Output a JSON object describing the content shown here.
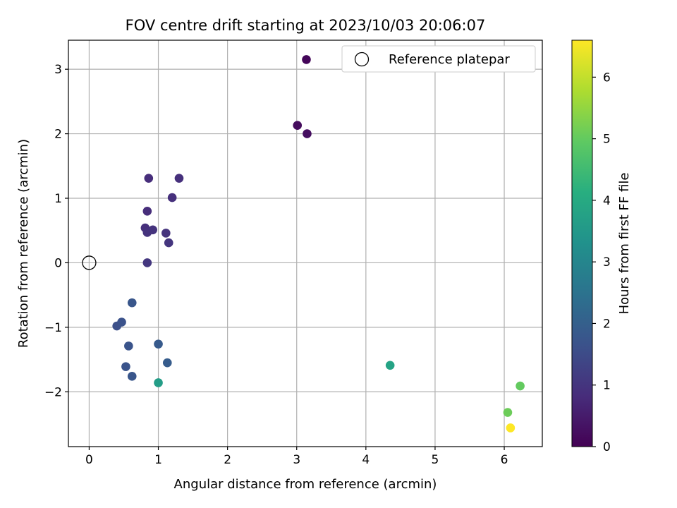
{
  "chart_data": {
    "type": "scatter",
    "title": "FOV centre drift starting at 2023/10/03 20:06:07",
    "xlabel": "Angular distance from reference (arcmin)",
    "ylabel": "Rotation from reference (arcmin)",
    "xlim": [
      -0.3,
      6.55
    ],
    "ylim": [
      -2.85,
      3.45
    ],
    "x_ticks": [
      0,
      1,
      2,
      3,
      4,
      5,
      6
    ],
    "x_tick_labels": [
      "0",
      "1",
      "2",
      "3",
      "4",
      "5",
      "6"
    ],
    "y_ticks": [
      -2,
      -1,
      0,
      1,
      2,
      3
    ],
    "y_tick_labels": [
      "−2",
      "−1",
      "0",
      "1",
      "2",
      "3"
    ],
    "grid": true,
    "legend": {
      "placement": "top-right",
      "entries": [
        "Reference platepar"
      ]
    },
    "reference_point": {
      "x": 0,
      "y": 0
    },
    "colorbar": {
      "label": "Hours from first FF file",
      "range": [
        0,
        6.6
      ],
      "ticks": [
        0,
        1,
        2,
        3,
        4,
        5,
        6
      ],
      "tick_labels": [
        "0",
        "1",
        "2",
        "3",
        "4",
        "5",
        "6"
      ],
      "colormap": "viridis"
    },
    "points": [
      {
        "x": 3.14,
        "y": 3.15,
        "hours": 0.1
      },
      {
        "x": 3.01,
        "y": 2.13,
        "hours": 0.2
      },
      {
        "x": 3.15,
        "y": 2.0,
        "hours": 0.25
      },
      {
        "x": 0.86,
        "y": 1.31,
        "hours": 0.85
      },
      {
        "x": 1.3,
        "y": 1.31,
        "hours": 0.9
      },
      {
        "x": 1.2,
        "y": 1.01,
        "hours": 0.9
      },
      {
        "x": 0.84,
        "y": 0.8,
        "hours": 0.85
      },
      {
        "x": 0.81,
        "y": 0.54,
        "hours": 0.9
      },
      {
        "x": 0.84,
        "y": 0.47,
        "hours": 0.95
      },
      {
        "x": 0.92,
        "y": 0.51,
        "hours": 0.95
      },
      {
        "x": 1.11,
        "y": 0.46,
        "hours": 0.95
      },
      {
        "x": 1.15,
        "y": 0.31,
        "hours": 1.0
      },
      {
        "x": 0.84,
        "y": 0.0,
        "hours": 1.05
      },
      {
        "x": 0.62,
        "y": -0.62,
        "hours": 1.75
      },
      {
        "x": 0.4,
        "y": -0.98,
        "hours": 1.6
      },
      {
        "x": 0.47,
        "y": -0.92,
        "hours": 1.65
      },
      {
        "x": 0.57,
        "y": -1.29,
        "hours": 1.7
      },
      {
        "x": 1.0,
        "y": -1.26,
        "hours": 1.85
      },
      {
        "x": 1.13,
        "y": -1.55,
        "hours": 1.9
      },
      {
        "x": 0.53,
        "y": -1.61,
        "hours": 1.7
      },
      {
        "x": 0.62,
        "y": -1.76,
        "hours": 1.75
      },
      {
        "x": 1.0,
        "y": -1.86,
        "hours": 3.65
      },
      {
        "x": 4.35,
        "y": -1.59,
        "hours": 3.8
      },
      {
        "x": 6.05,
        "y": -2.32,
        "hours": 5.1
      },
      {
        "x": 6.23,
        "y": -1.91,
        "hours": 5.0
      },
      {
        "x": 6.09,
        "y": -2.56,
        "hours": 6.6
      }
    ]
  }
}
